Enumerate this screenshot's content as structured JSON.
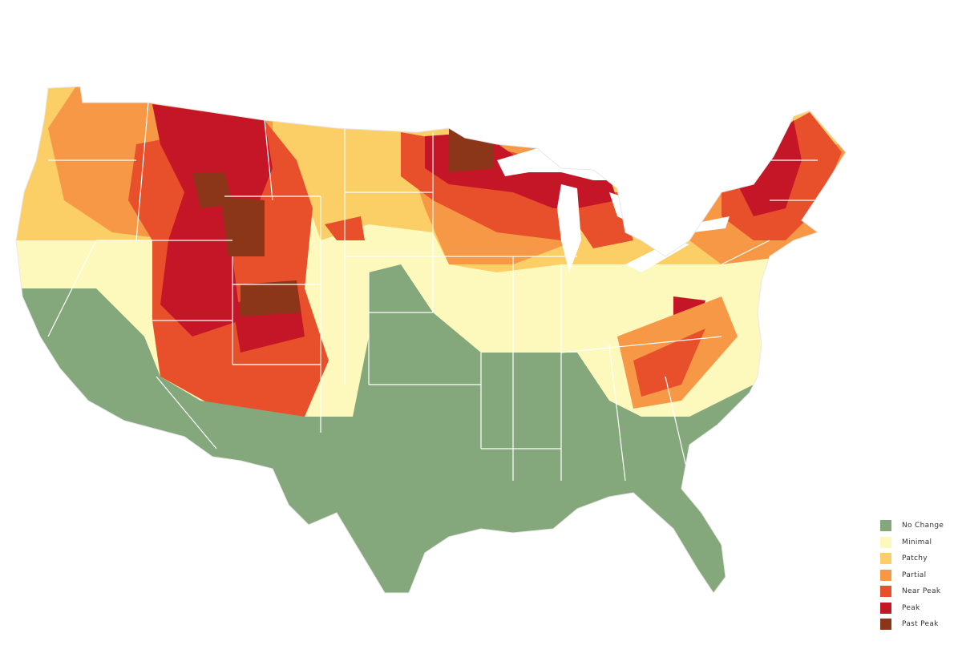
{
  "legend": {
    "items": [
      {
        "key": "no_change",
        "label": "No Change",
        "color": "#84a87b"
      },
      {
        "key": "minimal",
        "label": "Minimal",
        "color": "#fdf8bb"
      },
      {
        "key": "patchy",
        "label": "Patchy",
        "color": "#fbce66"
      },
      {
        "key": "partial",
        "label": "Partial",
        "color": "#f69846"
      },
      {
        "key": "near_peak",
        "label": "Near Peak",
        "color": "#e7502b"
      },
      {
        "key": "peak",
        "label": "Peak",
        "color": "#c51628"
      },
      {
        "key": "past_peak",
        "label": "Past Peak",
        "color": "#8b3618"
      }
    ]
  },
  "map": {
    "region_fill_levels": {
      "southwest_and_south": "no_change",
      "plains": "minimal",
      "mid_latitudes": "patchy",
      "northern_tier": "partial",
      "rockies": "near_peak",
      "high_rockies_upper_midwest_new_england": "peak",
      "wyoming_colorado_core": "past_peak"
    },
    "colors": {
      "lakes": "#ffffff",
      "state_borders": "#ffffff"
    }
  }
}
